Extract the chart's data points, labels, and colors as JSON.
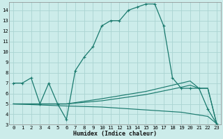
{
  "xlabel": "Humidex (Indice chaleur)",
  "bg_color": "#ccecea",
  "grid_color": "#aad4d2",
  "line_color": "#1a7a6e",
  "xlim": [
    -0.5,
    23.5
  ],
  "ylim": [
    3,
    14.8
  ],
  "yticks": [
    3,
    4,
    5,
    6,
    7,
    8,
    9,
    10,
    11,
    12,
    13,
    14
  ],
  "xticks": [
    0,
    1,
    2,
    3,
    4,
    5,
    6,
    7,
    8,
    9,
    10,
    11,
    12,
    13,
    14,
    15,
    16,
    17,
    18,
    19,
    20,
    21,
    22,
    23
  ],
  "series": [
    {
      "x": [
        0,
        1,
        2,
        3,
        4,
        5,
        6,
        7,
        8,
        9,
        10,
        11,
        12,
        13,
        14,
        15,
        16,
        17,
        18,
        19,
        20,
        21,
        22,
        23
      ],
      "y": [
        7,
        7,
        7.5,
        5,
        7,
        5,
        3.5,
        8.2,
        9.5,
        10.5,
        12.5,
        13,
        13,
        14,
        14.3,
        14.6,
        14.6,
        12.5,
        7.5,
        6.5,
        6.5,
        6.5,
        4.5,
        3.1
      ],
      "marker": true
    },
    {
      "x": [
        0,
        6,
        10,
        15,
        19,
        20,
        21,
        22,
        23
      ],
      "y": [
        5,
        5,
        5.5,
        6.2,
        7.0,
        7.2,
        6.5,
        6.5,
        3.1
      ],
      "marker": false
    },
    {
      "x": [
        0,
        6,
        10,
        15,
        19,
        20,
        21,
        22,
        23
      ],
      "y": [
        5,
        5,
        5.3,
        5.9,
        6.6,
        6.8,
        6.5,
        6.5,
        3.1
      ],
      "marker": false
    },
    {
      "x": [
        0,
        6,
        10,
        19,
        22,
        23
      ],
      "y": [
        5,
        4.8,
        4.7,
        4.2,
        3.8,
        3.1
      ],
      "marker": false
    }
  ]
}
